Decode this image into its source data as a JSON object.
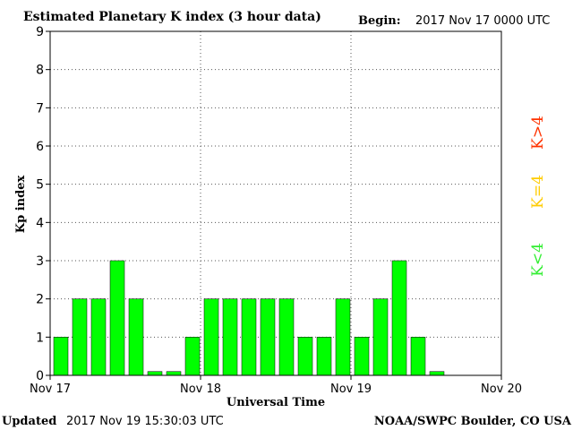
{
  "header": {
    "title": "Estimated Planetary K index (3 hour data)",
    "begin_label": "Begin:",
    "begin_value": "2017 Nov 17 0000 UTC"
  },
  "footer": {
    "updated_label": "Updated",
    "updated_value": "2017 Nov 19 15:30:03 UTC",
    "source": "NOAA/SWPC Boulder, CO USA"
  },
  "legend": {
    "items": [
      {
        "label": "K>4",
        "color": "#ff3300"
      },
      {
        "label": "K=4",
        "color": "#ffcc00"
      },
      {
        "label": "K<4",
        "color": "#33ee33"
      }
    ]
  },
  "colors": {
    "bar_low": "#00ff00",
    "bar_mid": "#ffcc00",
    "bar_high": "#ff3300",
    "grid": "#555555"
  },
  "chart_data": {
    "type": "bar",
    "title": "Estimated Planetary K index (3 hour data)",
    "xlabel": "Universal Time",
    "ylabel": "Kp index",
    "ylim": [
      0,
      9
    ],
    "yticks": [
      "0",
      "1",
      "2",
      "3",
      "4",
      "5",
      "6",
      "7",
      "8",
      "9"
    ],
    "x_tick_labels": [
      "Nov 17",
      "Nov 18",
      "Nov 19",
      "Nov 20"
    ],
    "bar_interval": "3 hour",
    "grid": "dotted",
    "values": [
      1,
      2,
      2,
      3,
      2,
      0.1,
      0.1,
      1,
      2,
      2,
      2,
      2,
      2,
      1,
      1,
      2,
      1,
      2,
      3,
      1,
      0.1
    ]
  }
}
